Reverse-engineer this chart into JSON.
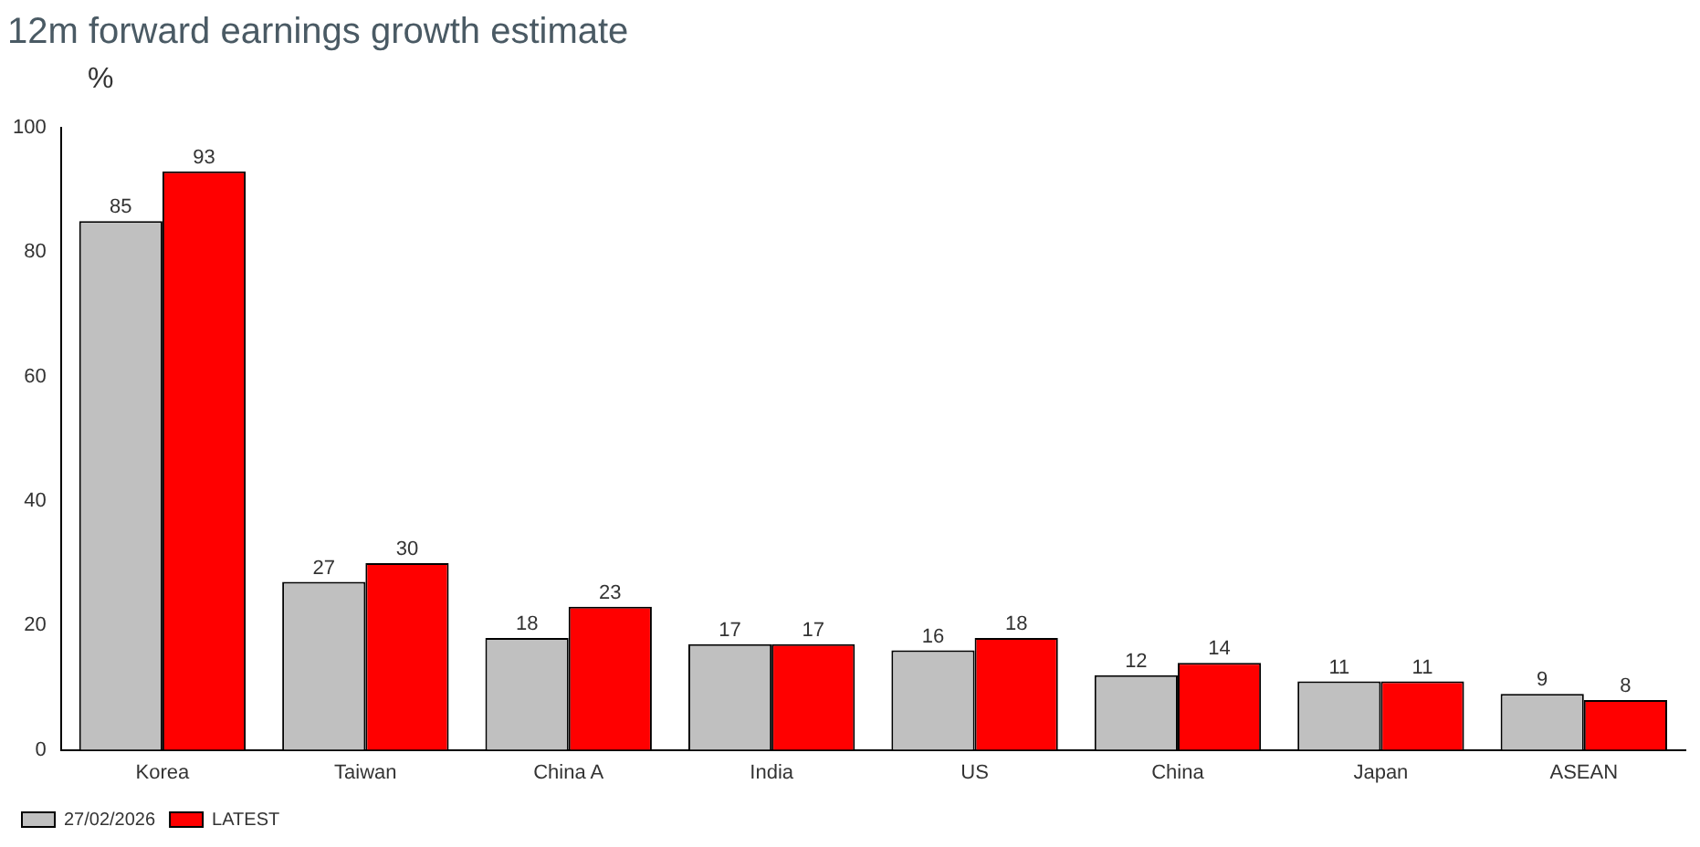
{
  "chart_data": {
    "type": "bar",
    "title": "12m forward earnings growth estimate",
    "ylabel": "%",
    "categories": [
      "Korea",
      "Taiwan",
      "China A",
      "India",
      "US",
      "China",
      "Japan",
      "ASEAN"
    ],
    "series": [
      {
        "name": "27/02/2026",
        "color": "#c0c0c0",
        "values": [
          85,
          27,
          18,
          17,
          16,
          12,
          11,
          9
        ]
      },
      {
        "name": "LATEST",
        "color": "#ff0000",
        "values": [
          93,
          30,
          23,
          17,
          18,
          14,
          11,
          8
        ]
      }
    ],
    "ylim": [
      0,
      100
    ],
    "yticks": [
      0,
      20,
      40,
      60,
      80,
      100
    ],
    "grid": false,
    "legend": "bottom left",
    "data_labels": true
  }
}
